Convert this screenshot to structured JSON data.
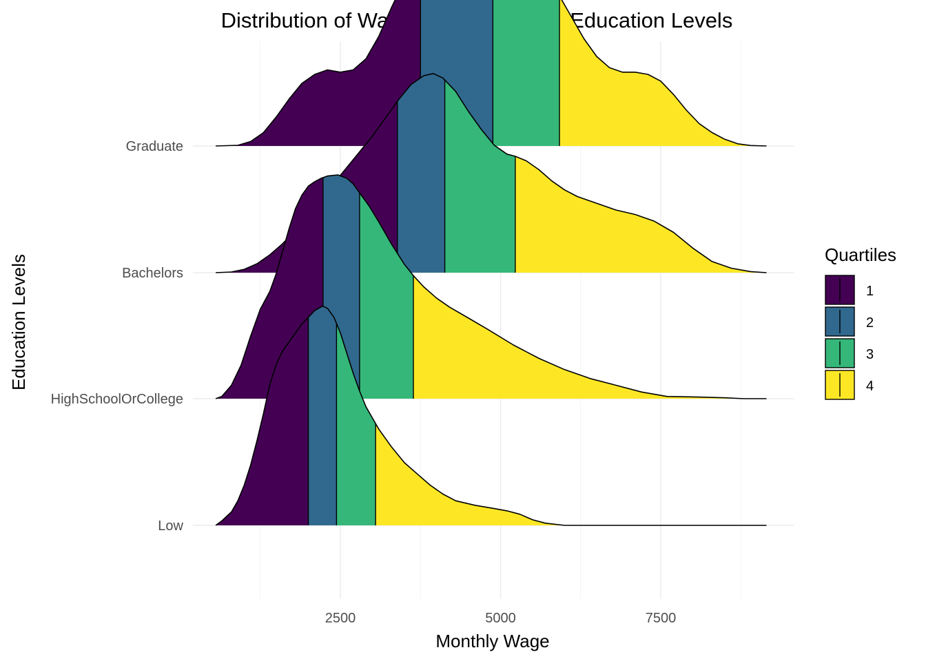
{
  "chart_data": {
    "type": "ridgeline",
    "title": "Distribution of Wage across different Education Levels",
    "xlabel": "Monthly Wage",
    "ylabel": "Education Levels",
    "xlim": [
      0,
      9500
    ],
    "x_ticks": [
      2500,
      5000,
      7500
    ],
    "x_tick_labels": [
      "2500",
      "5000",
      "7500"
    ],
    "x_minor_ticks": [
      1250,
      3750,
      6250,
      8750
    ],
    "grid": true,
    "legend": {
      "title": "Quartiles",
      "position": "right",
      "entries": [
        "1",
        "2",
        "3",
        "4"
      ]
    },
    "quartile_colors": [
      "#440154",
      "#31688E",
      "#35B779",
      "#FDE725"
    ],
    "categories": [
      "Low",
      "HighSchoolOrCollege",
      "Bachelors",
      "Graduate"
    ],
    "series": [
      {
        "category": "Low",
        "quartiles": [
          2000,
          2440,
          3050
        ],
        "density_relative": [
          [
            555,
            0.0
          ],
          [
            650,
            0.02
          ],
          [
            800,
            0.06
          ],
          [
            900,
            0.11
          ],
          [
            1000,
            0.18
          ],
          [
            1100,
            0.27
          ],
          [
            1200,
            0.38
          ],
          [
            1300,
            0.5
          ],
          [
            1400,
            0.63
          ],
          [
            1500,
            0.72
          ],
          [
            1600,
            0.78
          ],
          [
            1700,
            0.82
          ],
          [
            1800,
            0.86
          ],
          [
            1900,
            0.9
          ],
          [
            2000,
            0.93
          ],
          [
            2100,
            0.96
          ],
          [
            2220,
            0.98
          ],
          [
            2300,
            0.97
          ],
          [
            2400,
            0.93
          ],
          [
            2500,
            0.86
          ],
          [
            2600,
            0.77
          ],
          [
            2700,
            0.68
          ],
          [
            2800,
            0.6
          ],
          [
            2900,
            0.53
          ],
          [
            3000,
            0.48
          ],
          [
            3100,
            0.43
          ],
          [
            3300,
            0.35
          ],
          [
            3500,
            0.28
          ],
          [
            3700,
            0.23
          ],
          [
            3900,
            0.18
          ],
          [
            4100,
            0.14
          ],
          [
            4300,
            0.11
          ],
          [
            4600,
            0.09
          ],
          [
            4900,
            0.075
          ],
          [
            5100,
            0.065
          ],
          [
            5300,
            0.05
          ],
          [
            5500,
            0.025
          ],
          [
            5700,
            0.01
          ],
          [
            6000,
            0.0
          ],
          [
            9150,
            0.0
          ]
        ]
      },
      {
        "category": "HighSchoolOrCollege",
        "quartiles": [
          2230,
          2800,
          3640
        ],
        "density_relative": [
          [
            555,
            0.0
          ],
          [
            650,
            0.01
          ],
          [
            800,
            0.06
          ],
          [
            950,
            0.15
          ],
          [
            1100,
            0.28
          ],
          [
            1250,
            0.4
          ],
          [
            1400,
            0.48
          ],
          [
            1500,
            0.56
          ],
          [
            1600,
            0.66
          ],
          [
            1700,
            0.76
          ],
          [
            1800,
            0.85
          ],
          [
            1900,
            0.91
          ],
          [
            2000,
            0.95
          ],
          [
            2100,
            0.97
          ],
          [
            2200,
            0.985
          ],
          [
            2300,
            0.995
          ],
          [
            2460,
            1.0
          ],
          [
            2600,
            0.985
          ],
          [
            2700,
            0.96
          ],
          [
            2800,
            0.92
          ],
          [
            2950,
            0.86
          ],
          [
            3100,
            0.79
          ],
          [
            3300,
            0.69
          ],
          [
            3500,
            0.6
          ],
          [
            3640,
            0.55
          ],
          [
            3800,
            0.5
          ],
          [
            4000,
            0.45
          ],
          [
            4200,
            0.41
          ],
          [
            4500,
            0.36
          ],
          [
            4800,
            0.31
          ],
          [
            5200,
            0.24
          ],
          [
            5600,
            0.18
          ],
          [
            6000,
            0.13
          ],
          [
            6400,
            0.09
          ],
          [
            6800,
            0.06
          ],
          [
            7200,
            0.03
          ],
          [
            7600,
            0.01
          ],
          [
            8000,
            0.008
          ],
          [
            8500,
            0.004
          ],
          [
            8800,
            0.0
          ],
          [
            9150,
            0.0
          ]
        ]
      },
      {
        "category": "Bachelors",
        "quartiles": [
          3390,
          4130,
          5230
        ],
        "density_relative": [
          [
            555,
            0.0
          ],
          [
            800,
            0.003
          ],
          [
            1000,
            0.015
          ],
          [
            1200,
            0.04
          ],
          [
            1400,
            0.08
          ],
          [
            1600,
            0.13
          ],
          [
            1800,
            0.19
          ],
          [
            2000,
            0.26
          ],
          [
            2200,
            0.33
          ],
          [
            2400,
            0.4
          ],
          [
            2600,
            0.47
          ],
          [
            2800,
            0.54
          ],
          [
            3000,
            0.61
          ],
          [
            3200,
            0.69
          ],
          [
            3400,
            0.77
          ],
          [
            3600,
            0.84
          ],
          [
            3800,
            0.88
          ],
          [
            3950,
            0.89
          ],
          [
            4100,
            0.87
          ],
          [
            4300,
            0.81
          ],
          [
            4500,
            0.72
          ],
          [
            4700,
            0.64
          ],
          [
            4900,
            0.57
          ],
          [
            5100,
            0.53
          ],
          [
            5230,
            0.52
          ],
          [
            5400,
            0.5
          ],
          [
            5600,
            0.46
          ],
          [
            5800,
            0.41
          ],
          [
            6000,
            0.37
          ],
          [
            6200,
            0.34
          ],
          [
            6500,
            0.31
          ],
          [
            6800,
            0.28
          ],
          [
            7100,
            0.26
          ],
          [
            7400,
            0.23
          ],
          [
            7700,
            0.18
          ],
          [
            8000,
            0.11
          ],
          [
            8300,
            0.05
          ],
          [
            8600,
            0.02
          ],
          [
            8900,
            0.005
          ],
          [
            9150,
            0.0
          ]
        ]
      },
      {
        "category": "Graduate",
        "quartiles": [
          3750,
          4880,
          5920
        ],
        "density_relative": [
          [
            555,
            0.0
          ],
          [
            900,
            0.003
          ],
          [
            1100,
            0.02
          ],
          [
            1300,
            0.06
          ],
          [
            1500,
            0.13
          ],
          [
            1700,
            0.21
          ],
          [
            1900,
            0.28
          ],
          [
            2100,
            0.32
          ],
          [
            2300,
            0.34
          ],
          [
            2500,
            0.33
          ],
          [
            2700,
            0.34
          ],
          [
            2900,
            0.39
          ],
          [
            3100,
            0.49
          ],
          [
            3300,
            0.62
          ],
          [
            3500,
            0.74
          ],
          [
            3700,
            0.84
          ],
          [
            3900,
            0.87
          ],
          [
            4100,
            0.85
          ],
          [
            4300,
            0.79
          ],
          [
            4500,
            0.74
          ],
          [
            4700,
            0.7
          ],
          [
            4900,
            0.68
          ],
          [
            5100,
            0.7
          ],
          [
            5300,
            0.73
          ],
          [
            5500,
            0.75
          ],
          [
            5700,
            0.74
          ],
          [
            5900,
            0.68
          ],
          [
            6100,
            0.58
          ],
          [
            6300,
            0.48
          ],
          [
            6500,
            0.4
          ],
          [
            6700,
            0.35
          ],
          [
            6900,
            0.33
          ],
          [
            7100,
            0.33
          ],
          [
            7300,
            0.32
          ],
          [
            7500,
            0.29
          ],
          [
            7700,
            0.23
          ],
          [
            7900,
            0.16
          ],
          [
            8100,
            0.1
          ],
          [
            8300,
            0.06
          ],
          [
            8500,
            0.03
          ],
          [
            8700,
            0.01
          ],
          [
            8900,
            0.002
          ],
          [
            9150,
            0.0
          ]
        ]
      }
    ]
  }
}
